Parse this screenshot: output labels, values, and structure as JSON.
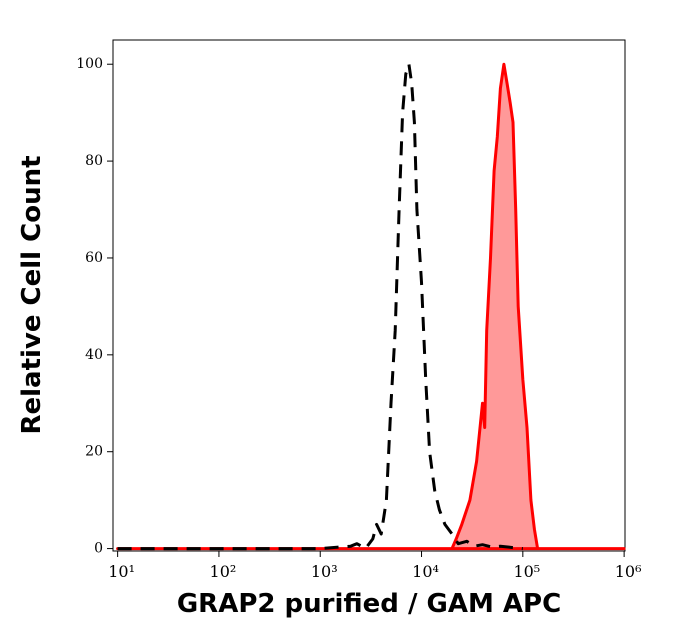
{
  "chart_data": {
    "type": "line",
    "x_label": "GRAP2 purified / GAM APC",
    "y_label": "Relative Cell Count",
    "xscale": "log",
    "xlim": [
      9,
      1020000
    ],
    "ylim": [
      -0.5,
      105
    ],
    "xticks": [
      {
        "value": 10,
        "label": "10¹"
      },
      {
        "value": 100,
        "label": "10²"
      },
      {
        "value": 1000,
        "label": "10³"
      },
      {
        "value": 10000,
        "label": "10⁴"
      },
      {
        "value": 100000,
        "label": "10⁵"
      },
      {
        "value": 1000000,
        "label": "10⁶"
      }
    ],
    "yticks": [
      0,
      20,
      40,
      60,
      80,
      100
    ],
    "series": [
      {
        "color": "#ff0000",
        "fill": "#ff9999",
        "x": [
          10,
          1000,
          20000,
          22000,
          25000,
          30000,
          35000,
          40000,
          42000,
          44000,
          48000,
          52000,
          56000,
          60000,
          65000,
          70000,
          75000,
          80000,
          85000,
          90000,
          100000,
          110000,
          120000,
          130000,
          140000,
          1000000
        ],
        "values": [
          0,
          0,
          0,
          2,
          5,
          10,
          18,
          30,
          25,
          45,
          60,
          78,
          85,
          95,
          100,
          96,
          92,
          88,
          70,
          50,
          35,
          25,
          10,
          4,
          0,
          0
        ]
      },
      {
        "color": "#000000",
        "dashed": true,
        "x": [
          10,
          1000,
          2000,
          2300,
          2800,
          3300,
          3600,
          4000,
          4500,
          5000,
          5500,
          6000,
          6500,
          7000,
          7500,
          8000,
          8500,
          9000,
          10000,
          11000,
          12000,
          13500,
          15000,
          17000,
          20000,
          23000,
          28000,
          33000,
          40000,
          50000,
          60000,
          80000,
          100000
        ],
        "values": [
          0,
          0,
          0.5,
          1,
          0,
          2,
          5,
          3,
          10,
          30,
          45,
          70,
          90,
          98,
          100,
          96,
          88,
          70,
          55,
          35,
          20,
          12,
          8,
          5,
          3,
          1,
          1.5,
          0.5,
          0.8,
          0.3,
          0.5,
          0.2,
          0
        ]
      }
    ]
  }
}
